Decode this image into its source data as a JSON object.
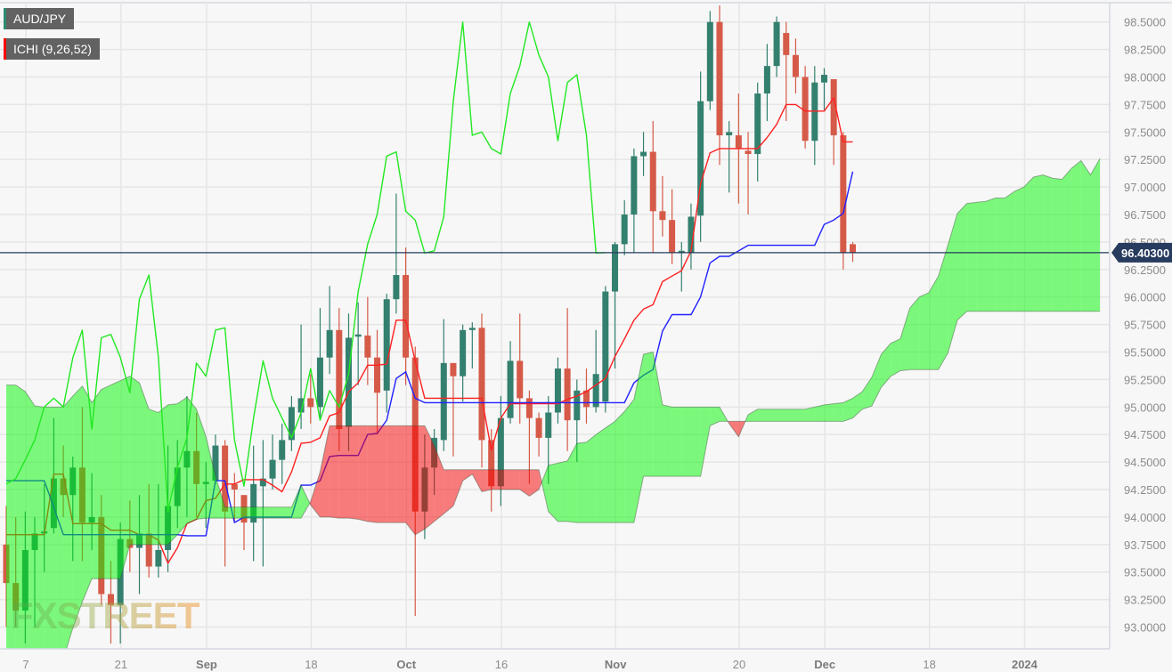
{
  "legend": {
    "pair": {
      "label": "AUD/JPY",
      "color": "#2e8b72"
    },
    "indicator": {
      "label": "ICHI (9,26,52)",
      "color": "#ff0000"
    }
  },
  "watermark": "FXSTREET",
  "colors": {
    "up_candle": "#34806f",
    "down_candle": "#d65a48",
    "tenkan": "#ff2020",
    "kijun": "#2020ff",
    "chikou": "#22e822",
    "cloud_bull": "rgba(0,250,0,0.5)",
    "cloud_bear": "rgba(250,0,0,0.5)",
    "last_price": "#263b5e"
  },
  "chart_data": {
    "type": "candlestick",
    "title": "AUD/JPY",
    "indicator": "ICHI (9,26,52)",
    "ylim": [
      92.81,
      98.7
    ],
    "grid": true,
    "y_ticks": [
      "93.0000",
      "93.2500",
      "93.5000",
      "93.7500",
      "94.0000",
      "94.2500",
      "94.5000",
      "94.7500",
      "95.0000",
      "95.2500",
      "95.5000",
      "95.7500",
      "96.0000",
      "96.2500",
      "96.5000",
      "96.7500",
      "97.0000",
      "97.2500",
      "97.5000",
      "97.7500",
      "98.0000",
      "98.2500",
      "98.5000"
    ],
    "x_ticks": [
      {
        "date": "2023-08-07",
        "label": "7",
        "major": false
      },
      {
        "date": "2023-08-21",
        "label": "21",
        "major": false
      },
      {
        "date": "2023-09-01",
        "label": "Sep",
        "major": true
      },
      {
        "date": "2023-09-18",
        "label": "18",
        "major": false
      },
      {
        "date": "2023-10-02",
        "label": "Oct",
        "major": true
      },
      {
        "date": "2023-10-16",
        "label": "16",
        "major": false
      },
      {
        "date": "2023-11-01",
        "label": "Nov",
        "major": true
      },
      {
        "date": "2023-11-20",
        "label": "20",
        "major": false
      },
      {
        "date": "2023-12-01",
        "label": "Dec",
        "major": true
      },
      {
        "date": "2023-12-18",
        "label": "18",
        "major": false
      },
      {
        "date": "2024-01-01",
        "label": "2024",
        "major": true
      }
    ],
    "last_price": 96.403,
    "last_price_label": "96.40300",
    "dates": [
      "2023-08-02",
      "2023-08-03",
      "2023-08-04",
      "2023-08-07",
      "2023-08-08",
      "2023-08-09",
      "2023-08-10",
      "2023-08-11",
      "2023-08-14",
      "2023-08-15",
      "2023-08-16",
      "2023-08-17",
      "2023-08-18",
      "2023-08-21",
      "2023-08-22",
      "2023-08-23",
      "2023-08-24",
      "2023-08-25",
      "2023-08-28",
      "2023-08-29",
      "2023-08-30",
      "2023-08-31",
      "2023-09-01",
      "2023-09-04",
      "2023-09-05",
      "2023-09-06",
      "2023-09-07",
      "2023-09-08",
      "2023-09-11",
      "2023-09-12",
      "2023-09-13",
      "2023-09-14",
      "2023-09-15",
      "2023-09-18",
      "2023-09-19",
      "2023-09-20",
      "2023-09-21",
      "2023-09-22",
      "2023-09-25",
      "2023-09-26",
      "2023-09-27",
      "2023-09-28",
      "2023-09-29",
      "2023-10-02",
      "2023-10-03",
      "2023-10-04",
      "2023-10-05",
      "2023-10-06",
      "2023-10-09",
      "2023-10-10",
      "2023-10-11",
      "2023-10-12",
      "2023-10-13",
      "2023-10-16",
      "2023-10-17",
      "2023-10-18",
      "2023-10-19",
      "2023-10-20",
      "2023-10-23",
      "2023-10-24",
      "2023-10-25",
      "2023-10-26",
      "2023-10-27",
      "2023-10-30",
      "2023-10-31",
      "2023-11-01",
      "2023-11-02",
      "2023-11-03",
      "2023-11-06",
      "2023-11-07",
      "2023-11-08",
      "2023-11-09",
      "2023-11-10",
      "2023-11-13",
      "2023-11-14",
      "2023-11-15",
      "2023-11-16",
      "2023-11-17",
      "2023-11-20",
      "2023-11-21",
      "2023-11-22",
      "2023-11-23",
      "2023-11-24",
      "2023-11-27",
      "2023-11-28",
      "2023-11-29",
      "2023-11-30",
      "2023-12-01",
      "2023-12-04",
      "2023-12-05",
      "2023-12-06",
      "2023-12-07",
      "2023-12-08",
      "2023-12-11",
      "2023-12-12",
      "2023-12-13",
      "2023-12-14",
      "2023-12-15",
      "2023-12-18",
      "2023-12-19",
      "2023-12-20",
      "2023-12-21",
      "2023-12-22",
      "2023-12-25",
      "2023-12-26",
      "2023-12-27",
      "2023-12-28",
      "2023-12-29",
      "2024-01-01",
      "2024-01-02",
      "2024-01-03",
      "2024-01-04",
      "2024-01-05",
      "2024-01-08",
      "2024-01-09",
      "2024-01-10"
    ],
    "candle_fields": [
      "date",
      "open",
      "high",
      "low",
      "close"
    ],
    "candles": [
      [
        "2023-08-02",
        93.75,
        94.1,
        93.0,
        93.4
      ],
      [
        "2023-08-03",
        93.4,
        94.0,
        93.0,
        93.15
      ],
      [
        "2023-08-04",
        93.15,
        94.05,
        92.85,
        93.7
      ],
      [
        "2023-08-07",
        93.7,
        94.0,
        93.0,
        93.85
      ],
      [
        "2023-08-08",
        93.85,
        94.3,
        93.5,
        93.87
      ],
      [
        "2023-08-09",
        93.9,
        94.9,
        93.85,
        94.35
      ],
      [
        "2023-08-10",
        94.35,
        94.65,
        94.0,
        94.2
      ],
      [
        "2023-08-11",
        94.2,
        94.55,
        93.6,
        94.45
      ],
      [
        "2023-08-14",
        94.45,
        95.0,
        93.6,
        93.95
      ],
      [
        "2023-08-15",
        93.95,
        94.4,
        93.7,
        94.0
      ],
      [
        "2023-08-16",
        94.0,
        94.2,
        93.2,
        93.3
      ],
      [
        "2023-08-17",
        93.3,
        93.6,
        92.85,
        93.2
      ],
      [
        "2023-08-18",
        93.2,
        93.95,
        92.85,
        93.8
      ],
      [
        "2023-08-21",
        93.8,
        94.15,
        93.5,
        93.72
      ],
      [
        "2023-08-22",
        93.72,
        94.2,
        93.3,
        93.85
      ],
      [
        "2023-08-23",
        93.85,
        94.3,
        93.45,
        93.55
      ],
      [
        "2023-08-24",
        93.55,
        94.3,
        93.45,
        93.7
      ],
      [
        "2023-08-25",
        93.7,
        94.65,
        93.5,
        94.1
      ],
      [
        "2023-08-28",
        94.1,
        94.7,
        93.9,
        94.45
      ],
      [
        "2023-08-29",
        94.45,
        95.1,
        94.0,
        94.6
      ],
      [
        "2023-08-30",
        94.6,
        94.95,
        94.0,
        94.3
      ],
      [
        "2023-08-31",
        94.3,
        94.5,
        93.9,
        94.32
      ],
      [
        "2023-09-01",
        94.33,
        94.75,
        94.3,
        94.65
      ],
      [
        "2023-09-04",
        94.65,
        94.7,
        93.55,
        94.05
      ],
      [
        "2023-09-05",
        94.3,
        94.4,
        93.95,
        94.25
      ],
      [
        "2023-09-06",
        94.2,
        94.2,
        93.7,
        93.95
      ],
      [
        "2023-09-07",
        93.95,
        94.65,
        93.6,
        94.3
      ],
      [
        "2023-09-08",
        94.28,
        94.7,
        93.55,
        94.35
      ],
      [
        "2023-09-11",
        94.35,
        94.75,
        94.25,
        94.52
      ],
      [
        "2023-09-12",
        94.52,
        94.85,
        94.3,
        94.7
      ],
      [
        "2023-09-13",
        94.7,
        95.1,
        94.6,
        95.0
      ],
      [
        "2023-09-14",
        94.95,
        95.75,
        94.8,
        95.08
      ],
      [
        "2023-09-15",
        95.08,
        95.3,
        94.85,
        95.0
      ],
      [
        "2023-09-18",
        95.0,
        95.9,
        94.9,
        95.45
      ],
      [
        "2023-09-19",
        95.45,
        96.1,
        95.3,
        95.7
      ],
      [
        "2023-09-20",
        95.7,
        95.9,
        94.6,
        94.8
      ],
      [
        "2023-09-21",
        94.82,
        95.85,
        94.6,
        95.63
      ],
      [
        "2023-09-22",
        95.64,
        95.95,
        95.2,
        95.66
      ],
      [
        "2023-09-25",
        95.65,
        96.0,
        95.2,
        95.45
      ],
      [
        "2023-09-26",
        95.45,
        95.7,
        94.75,
        95.13
      ],
      [
        "2023-09-27",
        95.15,
        96.03,
        94.95,
        95.98
      ],
      [
        "2023-09-28",
        95.98,
        96.94,
        95.85,
        96.2
      ],
      [
        "2023-09-29",
        96.2,
        96.45,
        95.2,
        95.45
      ],
      [
        "2023-10-02",
        95.45,
        95.55,
        93.1,
        94.05
      ],
      [
        "2023-10-03",
        94.05,
        94.75,
        93.8,
        94.45
      ],
      [
        "2023-10-04",
        94.45,
        94.8,
        94.2,
        94.72
      ],
      [
        "2023-10-05",
        94.7,
        95.8,
        94.6,
        95.4
      ],
      [
        "2023-10-06",
        95.4,
        95.4,
        94.55,
        95.28
      ],
      [
        "2023-10-09",
        95.28,
        95.75,
        95.05,
        95.7
      ],
      [
        "2023-10-10",
        95.7,
        95.77,
        95.35,
        95.72
      ],
      [
        "2023-10-11",
        95.72,
        95.85,
        94.45,
        94.7
      ],
      [
        "2023-10-12",
        94.7,
        94.8,
        94.05,
        94.28
      ],
      [
        "2023-10-13",
        94.28,
        95.1,
        94.1,
        94.9
      ],
      [
        "2023-10-16",
        94.9,
        95.6,
        94.85,
        95.42
      ],
      [
        "2023-10-17",
        95.42,
        95.85,
        94.85,
        95.08
      ],
      [
        "2023-10-18",
        95.08,
        95.15,
        94.3,
        94.9
      ],
      [
        "2023-10-19",
        94.9,
        94.95,
        94.55,
        94.72
      ],
      [
        "2023-10-20",
        94.72,
        95.1,
        94.3,
        94.95
      ],
      [
        "2023-10-23",
        94.95,
        95.45,
        94.85,
        95.35
      ],
      [
        "2023-10-24",
        95.35,
        95.9,
        94.6,
        94.88
      ],
      [
        "2023-10-25",
        94.88,
        95.25,
        94.5,
        95.15
      ],
      [
        "2023-10-26",
        95.15,
        95.35,
        94.85,
        95.0
      ],
      [
        "2023-10-27",
        95.0,
        95.7,
        94.95,
        95.3
      ],
      [
        "2023-10-30",
        95.05,
        96.1,
        94.95,
        96.05
      ],
      [
        "2023-10-31",
        96.05,
        96.5,
        95.35,
        96.48
      ],
      [
        "2023-11-01",
        96.48,
        96.88,
        96.38,
        96.75
      ],
      [
        "2023-11-02",
        96.75,
        97.35,
        96.4,
        97.28
      ],
      [
        "2023-11-03",
        97.28,
        97.5,
        97.1,
        97.32
      ],
      [
        "2023-11-06",
        97.32,
        97.6,
        96.4,
        96.78
      ],
      [
        "2023-11-07",
        96.78,
        97.1,
        96.55,
        96.7
      ],
      [
        "2023-11-08",
        96.7,
        96.98,
        96.3,
        96.4
      ],
      [
        "2023-11-09",
        96.4,
        96.5,
        96.05,
        96.42
      ],
      [
        "2023-11-10",
        96.4,
        96.85,
        96.25,
        96.73
      ],
      [
        "2023-11-13",
        96.74,
        98.05,
        96.5,
        97.78
      ],
      [
        "2023-11-14",
        97.78,
        98.6,
        97.7,
        98.5
      ],
      [
        "2023-11-15",
        98.5,
        98.65,
        97.2,
        97.47
      ],
      [
        "2023-11-16",
        97.47,
        97.6,
        96.95,
        97.5
      ],
      [
        "2023-11-17",
        97.47,
        97.85,
        96.85,
        97.35
      ],
      [
        "2023-11-20",
        97.33,
        97.5,
        96.75,
        97.3
      ],
      [
        "2023-11-21",
        97.3,
        97.95,
        97.05,
        97.85
      ],
      [
        "2023-11-22",
        97.85,
        98.3,
        97.6,
        98.1
      ],
      [
        "2023-11-23",
        98.1,
        98.55,
        98.0,
        98.5
      ],
      [
        "2023-11-24",
        98.4,
        98.5,
        97.6,
        98.2
      ],
      [
        "2023-11-27",
        98.2,
        98.35,
        97.85,
        98.0
      ],
      [
        "2023-11-28",
        98.0,
        98.1,
        97.35,
        97.42
      ],
      [
        "2023-11-29",
        97.42,
        98.1,
        97.2,
        97.95
      ],
      [
        "2023-11-30",
        97.95,
        98.08,
        97.7,
        98.02
      ],
      [
        "2023-12-01",
        97.98,
        97.98,
        97.2,
        97.47
      ],
      [
        "2023-12-04",
        97.47,
        97.5,
        96.25,
        96.4
      ],
      [
        "2023-12-05",
        96.48,
        96.5,
        96.32,
        96.403
      ]
    ],
    "tenkan_sen": [
      93.84,
      93.84,
      93.84,
      93.84,
      93.84,
      94.39,
      94.39,
      93.94,
      93.94,
      93.94,
      93.94,
      93.88,
      93.88,
      93.88,
      93.84,
      93.84,
      93.79,
      93.58,
      93.72,
      93.94,
      93.98,
      94.15,
      94.17,
      94.3,
      94.3,
      94.34,
      94.34,
      94.34,
      94.29,
      94.23,
      94.41,
      94.67,
      94.68,
      94.72,
      94.92,
      94.95,
      95.14,
      95.22,
      95.38,
      95.38,
      95.39,
      95.79,
      95.79,
      95.42,
      95.08,
      95.08,
      95.08,
      95.08,
      95.08,
      95.08,
      95.08,
      94.61,
      94.9,
      95.03,
      95.03,
      95.03,
      95.03,
      95.03,
      95.03,
      95.07,
      95.1,
      95.14,
      95.2,
      95.26,
      95.46,
      95.62,
      95.79,
      95.89,
      95.93,
      96.14,
      96.19,
      96.24,
      96.42,
      97.03,
      97.31,
      97.35,
      97.35,
      97.35,
      97.35,
      97.35,
      97.45,
      97.57,
      97.75,
      97.75,
      97.69,
      97.69,
      97.69,
      97.81,
      97.41,
      97.41
    ],
    "kijun_sen": [
      94.33,
      94.33,
      94.33,
      94.33,
      94.33,
      94.09,
      93.84,
      93.84,
      93.84,
      93.84,
      93.84,
      93.84,
      93.84,
      93.84,
      93.84,
      93.84,
      93.84,
      93.84,
      93.84,
      93.83,
      93.83,
      93.83,
      94.33,
      94.33,
      93.95,
      94.0,
      94.0,
      94.0,
      94.0,
      94.0,
      94.0,
      94.29,
      94.29,
      94.33,
      94.55,
      94.56,
      94.56,
      94.56,
      94.75,
      94.76,
      94.88,
      95.26,
      95.32,
      95.08,
      95.04,
      95.04,
      95.04,
      95.04,
      95.04,
      95.04,
      95.04,
      95.04,
      95.04,
      95.04,
      95.04,
      95.04,
      95.04,
      95.04,
      95.04,
      95.04,
      95.04,
      95.04,
      95.04,
      95.04,
      95.04,
      95.04,
      95.22,
      95.29,
      95.34,
      95.69,
      95.84,
      95.84,
      95.84,
      96.0,
      96.31,
      96.37,
      96.37,
      96.42,
      96.47,
      96.47,
      96.47,
      96.47,
      96.47,
      96.47,
      96.47,
      96.47,
      96.66,
      96.7,
      96.76,
      97.14
    ],
    "senkou_span_a": [
      95.2,
      95.2,
      95.14,
      95.01,
      95.0,
      95.0,
      95.0,
      95.1,
      95.19,
      95.04,
      95.16,
      95.2,
      95.24,
      95.28,
      95.22,
      94.98,
      94.95,
      95.02,
      95.03,
      95.09,
      94.98,
      94.73,
      94.37,
      94.09,
      94.09,
      94.09,
      94.09,
      94.09,
      94.09,
      94.09,
      94.09,
      94.29,
      94.11,
      94.0,
      94.0,
      93.99,
      93.99,
      93.98,
      93.96,
      93.95,
      93.95,
      93.95,
      93.95,
      93.84,
      93.89,
      93.96,
      94.03,
      94.1,
      94.33,
      94.39,
      94.23,
      94.25,
      94.25,
      94.25,
      94.25,
      94.19,
      94.25,
      94.47,
      94.49,
      94.51,
      94.67,
      94.68,
      94.75,
      94.81,
      94.87,
      94.96,
      95.07,
      95.48,
      95.5,
      95.02,
      95.0,
      95.0,
      95.0,
      95.0,
      95.0,
      95.0,
      94.85,
      94.73,
      94.93,
      94.98,
      94.98,
      94.98,
      94.98,
      94.98,
      94.98,
      95.0,
      95.02,
      95.03,
      95.04,
      95.08,
      95.14,
      95.27,
      95.48,
      95.58,
      95.62,
      95.9,
      96.0,
      96.04,
      96.19,
      96.47,
      96.76,
      96.85,
      96.86,
      96.87,
      96.9,
      96.9,
      96.96,
      97.0,
      97.09,
      97.11,
      97.08,
      97.07,
      97.17,
      97.24,
      97.11,
      97.26
    ],
    "senkou_span_b": [
      92.6,
      92.6,
      92.6,
      92.6,
      92.6,
      92.6,
      92.71,
      92.99,
      93.23,
      93.44,
      93.44,
      93.44,
      93.44,
      93.75,
      93.75,
      93.75,
      93.75,
      93.75,
      93.84,
      93.94,
      93.98,
      93.99,
      93.99,
      93.99,
      93.99,
      93.99,
      93.99,
      93.99,
      93.99,
      93.99,
      93.99,
      93.99,
      94.14,
      94.41,
      94.83,
      94.83,
      94.83,
      94.83,
      94.83,
      94.83,
      94.83,
      94.83,
      94.83,
      94.83,
      94.83,
      94.65,
      94.43,
      94.43,
      94.43,
      94.43,
      94.43,
      94.43,
      94.43,
      94.43,
      94.43,
      94.43,
      94.43,
      94.05,
      93.96,
      93.96,
      93.95,
      93.95,
      93.95,
      93.95,
      93.95,
      93.95,
      93.95,
      94.37,
      94.37,
      94.37,
      94.37,
      94.37,
      94.37,
      94.37,
      94.83,
      94.87,
      94.87,
      94.87,
      94.87,
      94.87,
      94.87,
      94.87,
      94.87,
      94.87,
      94.87,
      94.87,
      94.87,
      94.87,
      94.87,
      94.9,
      94.98,
      95.01,
      95.18,
      95.28,
      95.33,
      95.34,
      95.34,
      95.34,
      95.34,
      95.49,
      95.79,
      95.87,
      95.87,
      95.87,
      95.87,
      95.87,
      95.87,
      95.87,
      95.87,
      95.87,
      95.87,
      95.87,
      95.87,
      95.87,
      95.87,
      95.87
    ],
    "chikou_shift": 26
  }
}
